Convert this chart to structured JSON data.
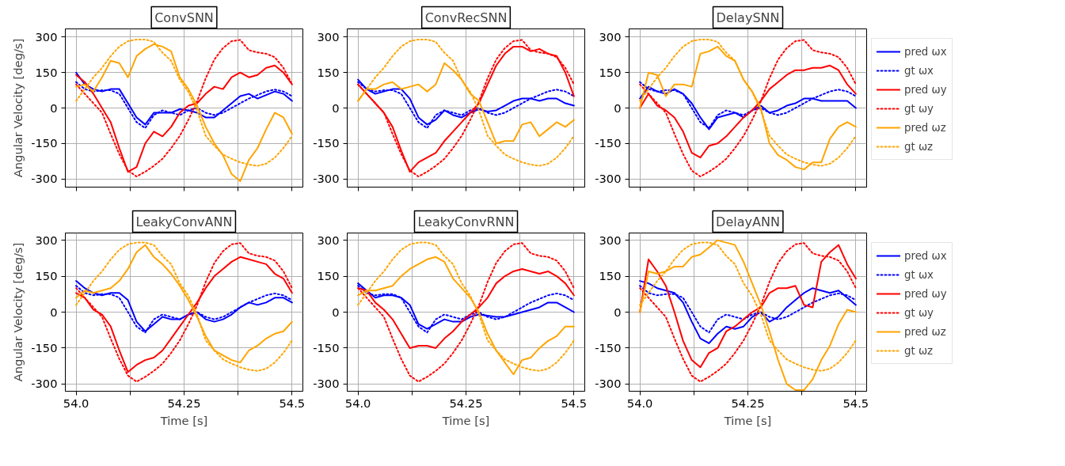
{
  "chart_data": [
    {
      "type": "line",
      "title": "ConvSNN",
      "ylabel": "Angular Velocity [deg/s]",
      "tick_labels": "y",
      "grid": true,
      "x": [
        54.0,
        54.02,
        54.04,
        54.06,
        54.08,
        54.1,
        54.12,
        54.14,
        54.16,
        54.18,
        54.2,
        54.22,
        54.24,
        54.26,
        54.28,
        54.3,
        54.32,
        54.34,
        54.36,
        54.38,
        54.4,
        54.42,
        54.44,
        54.46,
        54.48,
        54.5
      ],
      "xlim": [
        53.975,
        54.525
      ],
      "xticks": [
        {
          "value": 54.0,
          "label": null
        },
        {
          "value": 54.125,
          "label": null
        },
        {
          "value": 54.25,
          "label": null
        },
        {
          "value": 54.375,
          "label": null
        },
        {
          "value": 54.5,
          "label": null
        }
      ],
      "ylim": [
        -335,
        335
      ],
      "yticks": [
        -300,
        -150,
        0,
        150,
        300
      ],
      "series": [
        {
          "color": "#0000ff",
          "line_style": "solid",
          "values": [
            150,
            100,
            80,
            70,
            80,
            80,
            20,
            -40,
            -70,
            -20,
            -20,
            -20,
            -5,
            -10,
            -20,
            -40,
            -40,
            -10,
            20,
            50,
            60,
            40,
            55,
            70,
            60,
            30
          ]
        },
        {
          "color": "#0000ff",
          "line_style": "dotted",
          "values": [
            110,
            80,
            70,
            75,
            75,
            60,
            0,
            -60,
            -85,
            -30,
            -10,
            -20,
            -30,
            -10,
            0,
            -20,
            -30,
            -20,
            0,
            20,
            40,
            55,
            70,
            78,
            70,
            50
          ]
        },
        {
          "color": "#ff0000",
          "line_style": "solid",
          "values": [
            140,
            110,
            60,
            0,
            -60,
            -170,
            -270,
            -250,
            -150,
            -100,
            -120,
            -80,
            -20,
            10,
            20,
            60,
            90,
            80,
            130,
            150,
            130,
            140,
            170,
            180,
            150,
            100
          ]
        },
        {
          "color": "#ff0000",
          "line_style": "dotted",
          "values": [
            100,
            60,
            20,
            -20,
            -110,
            -195,
            -265,
            -290,
            -270,
            -245,
            -215,
            -170,
            -118,
            -50,
            28,
            126,
            205,
            254,
            283,
            288,
            245,
            235,
            230,
            215,
            170,
            100
          ]
        },
        {
          "color": "#ffa500",
          "line_style": "solid",
          "values": [
            90,
            100,
            70,
            130,
            200,
            190,
            130,
            220,
            250,
            270,
            260,
            240,
            130,
            80,
            10,
            -80,
            -150,
            -200,
            -280,
            -310,
            -220,
            -170,
            -90,
            -20,
            -40,
            -110
          ]
        },
        {
          "color": "#ffa500",
          "line_style": "dotted",
          "values": [
            30,
            80,
            130,
            170,
            220,
            260,
            283,
            290,
            290,
            280,
            234,
            200,
            120,
            68,
            -10,
            -118,
            -160,
            -197,
            -215,
            -230,
            -240,
            -245,
            -236,
            -210,
            -170,
            -118
          ]
        }
      ]
    },
    {
      "type": "line",
      "title": "ConvRecSNN",
      "tick_labels": "y",
      "grid": true,
      "x": [
        54.0,
        54.02,
        54.04,
        54.06,
        54.08,
        54.1,
        54.12,
        54.14,
        54.16,
        54.18,
        54.2,
        54.22,
        54.24,
        54.26,
        54.28,
        54.3,
        54.32,
        54.34,
        54.36,
        54.38,
        54.4,
        54.42,
        54.44,
        54.46,
        54.48,
        54.5
      ],
      "xlim": [
        53.975,
        54.525
      ],
      "xticks": [
        {
          "value": 54.0,
          "label": null
        },
        {
          "value": 54.125,
          "label": null
        },
        {
          "value": 54.25,
          "label": null
        },
        {
          "value": 54.375,
          "label": null
        },
        {
          "value": 54.5,
          "label": null
        }
      ],
      "ylim": [
        -335,
        335
      ],
      "yticks": [
        -300,
        -150,
        0,
        150,
        300
      ],
      "series": [
        {
          "color": "#0000ff",
          "line_style": "solid",
          "values": [
            120,
            80,
            60,
            70,
            80,
            80,
            40,
            -40,
            -70,
            -50,
            -10,
            -30,
            -40,
            -20,
            -5,
            -15,
            -10,
            10,
            30,
            40,
            40,
            30,
            40,
            40,
            20,
            10
          ]
        },
        {
          "color": "#0000ff",
          "line_style": "dotted",
          "values": [
            110,
            80,
            70,
            75,
            75,
            60,
            0,
            -60,
            -85,
            -30,
            -10,
            -20,
            -30,
            -10,
            0,
            -20,
            -30,
            -20,
            0,
            20,
            40,
            55,
            70,
            78,
            70,
            50
          ]
        },
        {
          "color": "#ff0000",
          "line_style": "solid",
          "values": [
            100,
            60,
            20,
            -20,
            -80,
            -180,
            -270,
            -230,
            -210,
            -190,
            -140,
            -100,
            -60,
            -20,
            20,
            100,
            180,
            230,
            260,
            260,
            240,
            250,
            230,
            220,
            150,
            50
          ]
        },
        {
          "color": "#ff0000",
          "line_style": "dotted",
          "values": [
            100,
            60,
            20,
            -20,
            -110,
            -195,
            -265,
            -290,
            -270,
            -245,
            -215,
            -170,
            -118,
            -50,
            28,
            126,
            205,
            254,
            283,
            288,
            245,
            235,
            230,
            215,
            170,
            100
          ]
        },
        {
          "color": "#ffa500",
          "line_style": "solid",
          "values": [
            30,
            80,
            80,
            100,
            110,
            80,
            90,
            100,
            70,
            100,
            190,
            160,
            120,
            60,
            30,
            -60,
            -150,
            -140,
            -140,
            -70,
            -60,
            -120,
            -90,
            -60,
            -80,
            -50
          ]
        },
        {
          "color": "#ffa500",
          "line_style": "dotted",
          "values": [
            30,
            80,
            130,
            170,
            220,
            260,
            283,
            290,
            290,
            280,
            234,
            200,
            120,
            68,
            -10,
            -118,
            -160,
            -197,
            -215,
            -230,
            -240,
            -245,
            -236,
            -210,
            -170,
            -118
          ]
        }
      ]
    },
    {
      "type": "line",
      "title": "DelaySNN",
      "tick_labels": "y",
      "grid": true,
      "legend": "right",
      "x": [
        54.0,
        54.02,
        54.04,
        54.06,
        54.08,
        54.1,
        54.12,
        54.14,
        54.16,
        54.18,
        54.2,
        54.22,
        54.24,
        54.26,
        54.28,
        54.3,
        54.32,
        54.34,
        54.36,
        54.38,
        54.4,
        54.42,
        54.44,
        54.46,
        54.48,
        54.5
      ],
      "xlim": [
        53.975,
        54.525
      ],
      "xticks": [
        {
          "value": 54.0,
          "label": null
        },
        {
          "value": 54.125,
          "label": null
        },
        {
          "value": 54.25,
          "label": null
        },
        {
          "value": 54.375,
          "label": null
        },
        {
          "value": 54.5,
          "label": null
        }
      ],
      "ylim": [
        -335,
        335
      ],
      "yticks": [
        -300,
        -150,
        0,
        150,
        300
      ],
      "series": [
        {
          "name": "pred ωx",
          "color": "#0000ff",
          "line_style": "solid",
          "values": [
            40,
            90,
            70,
            60,
            80,
            60,
            20,
            -40,
            -90,
            -40,
            -30,
            -20,
            -40,
            -10,
            10,
            -20,
            -10,
            10,
            20,
            40,
            40,
            30,
            30,
            30,
            30,
            0
          ]
        },
        {
          "name": "gt ωx",
          "color": "#0000ff",
          "line_style": "dotted",
          "values": [
            110,
            80,
            70,
            75,
            75,
            60,
            0,
            -60,
            -85,
            -30,
            -10,
            -20,
            -30,
            -10,
            0,
            -20,
            -30,
            -20,
            0,
            20,
            40,
            55,
            70,
            78,
            70,
            50
          ]
        },
        {
          "name": "pred ωy",
          "color": "#ff0000",
          "line_style": "solid",
          "values": [
            0,
            60,
            10,
            -10,
            -40,
            -100,
            -190,
            -210,
            -160,
            -150,
            -120,
            -80,
            -40,
            -10,
            30,
            80,
            110,
            140,
            160,
            160,
            170,
            170,
            180,
            160,
            100,
            60
          ]
        },
        {
          "name": "gt ωy",
          "color": "#ff0000",
          "line_style": "dotted",
          "values": [
            100,
            60,
            20,
            -20,
            -110,
            -195,
            -265,
            -290,
            -270,
            -245,
            -215,
            -170,
            -118,
            -50,
            28,
            126,
            205,
            254,
            283,
            288,
            245,
            235,
            230,
            215,
            170,
            100
          ]
        },
        {
          "name": "pred ωz",
          "color": "#ffa500",
          "line_style": "solid",
          "values": [
            0,
            150,
            140,
            50,
            100,
            100,
            90,
            230,
            240,
            260,
            220,
            200,
            120,
            70,
            0,
            -150,
            -200,
            -220,
            -250,
            -260,
            -230,
            -230,
            -130,
            -80,
            -60,
            -80
          ]
        },
        {
          "name": "gt ωz",
          "color": "#ffa500",
          "line_style": "dotted",
          "values": [
            30,
            80,
            130,
            170,
            220,
            260,
            283,
            290,
            290,
            280,
            234,
            200,
            120,
            68,
            -10,
            -118,
            -160,
            -197,
            -215,
            -230,
            -240,
            -245,
            -236,
            -210,
            -170,
            -118
          ]
        }
      ]
    },
    {
      "type": "line",
      "title": "LeakyConvANN",
      "ylabel": "Angular Velocity [deg/s]",
      "xlabel": "Time [s]",
      "grid": true,
      "x": [
        54.0,
        54.02,
        54.04,
        54.06,
        54.08,
        54.1,
        54.12,
        54.14,
        54.16,
        54.18,
        54.2,
        54.22,
        54.24,
        54.26,
        54.28,
        54.3,
        54.32,
        54.34,
        54.36,
        54.38,
        54.4,
        54.42,
        54.44,
        54.46,
        54.48,
        54.5
      ],
      "xlim": [
        53.975,
        54.525
      ],
      "xticks": [
        {
          "value": 54.0,
          "label": "54.0"
        },
        {
          "value": 54.125,
          "label": null
        },
        {
          "value": 54.25,
          "label": "54.25"
        },
        {
          "value": 54.375,
          "label": null
        },
        {
          "value": 54.5,
          "label": "54.5"
        }
      ],
      "ylim": [
        -330,
        330
      ],
      "yticks": [
        -300,
        -150,
        0,
        150,
        300
      ],
      "series": [
        {
          "color": "#0000ff",
          "line_style": "solid",
          "values": [
            130,
            100,
            80,
            70,
            80,
            80,
            50,
            -40,
            -80,
            -50,
            -20,
            -30,
            -30,
            -10,
            0,
            -30,
            -40,
            -30,
            -10,
            20,
            40,
            30,
            40,
            60,
            60,
            40
          ]
        },
        {
          "color": "#0000ff",
          "line_style": "dotted",
          "values": [
            110,
            80,
            70,
            75,
            75,
            60,
            0,
            -60,
            -85,
            -30,
            -10,
            -20,
            -30,
            -10,
            0,
            -20,
            -30,
            -20,
            0,
            20,
            40,
            55,
            70,
            78,
            70,
            50
          ]
        },
        {
          "color": "#ff0000",
          "line_style": "solid",
          "values": [
            80,
            60,
            10,
            -10,
            -60,
            -160,
            -250,
            -220,
            -200,
            -190,
            -160,
            -110,
            -60,
            -10,
            40,
            100,
            150,
            180,
            210,
            230,
            220,
            210,
            200,
            160,
            140,
            80
          ]
        },
        {
          "color": "#ff0000",
          "line_style": "dotted",
          "values": [
            100,
            60,
            20,
            -20,
            -110,
            -195,
            -265,
            -290,
            -270,
            -245,
            -215,
            -170,
            -118,
            -50,
            28,
            126,
            205,
            254,
            283,
            288,
            245,
            235,
            230,
            215,
            170,
            100
          ]
        },
        {
          "color": "#ffa500",
          "line_style": "solid",
          "values": [
            60,
            90,
            80,
            90,
            100,
            130,
            180,
            250,
            280,
            230,
            200,
            160,
            110,
            50,
            -20,
            -100,
            -160,
            -180,
            -200,
            -210,
            -160,
            -140,
            -110,
            -90,
            -80,
            -40
          ]
        },
        {
          "color": "#ffa500",
          "line_style": "dotted",
          "values": [
            30,
            80,
            130,
            170,
            220,
            260,
            283,
            290,
            290,
            280,
            234,
            200,
            120,
            68,
            -10,
            -118,
            -160,
            -197,
            -215,
            -230,
            -240,
            -245,
            -236,
            -210,
            -170,
            -118
          ]
        }
      ]
    },
    {
      "type": "line",
      "title": "LeakyConvRNN",
      "xlabel": "Time [s]",
      "grid": true,
      "x": [
        54.0,
        54.02,
        54.04,
        54.06,
        54.08,
        54.1,
        54.12,
        54.14,
        54.16,
        54.18,
        54.2,
        54.22,
        54.24,
        54.26,
        54.28,
        54.3,
        54.32,
        54.34,
        54.36,
        54.38,
        54.4,
        54.42,
        54.44,
        54.46,
        54.48,
        54.5
      ],
      "xlim": [
        53.975,
        54.525
      ],
      "xticks": [
        {
          "value": 54.0,
          "label": "54.0"
        },
        {
          "value": 54.125,
          "label": null
        },
        {
          "value": 54.25,
          "label": "54.25"
        },
        {
          "value": 54.375,
          "label": null
        },
        {
          "value": 54.5,
          "label": "54.5"
        }
      ],
      "ylim": [
        -330,
        330
      ],
      "yticks": [
        -300,
        -150,
        0,
        150,
        300
      ],
      "series": [
        {
          "color": "#0000ff",
          "line_style": "solid",
          "values": [
            120,
            90,
            60,
            70,
            70,
            60,
            30,
            -50,
            -70,
            -50,
            -30,
            -40,
            -40,
            -20,
            -10,
            -15,
            -20,
            -20,
            -10,
            0,
            10,
            20,
            40,
            40,
            20,
            0
          ]
        },
        {
          "color": "#0000ff",
          "line_style": "dotted",
          "values": [
            110,
            80,
            70,
            75,
            75,
            60,
            0,
            -60,
            -85,
            -30,
            -10,
            -20,
            -30,
            -10,
            0,
            -20,
            -30,
            -20,
            0,
            20,
            40,
            55,
            70,
            78,
            70,
            50
          ]
        },
        {
          "color": "#ff0000",
          "line_style": "solid",
          "values": [
            100,
            90,
            40,
            10,
            -30,
            -90,
            -150,
            -140,
            -140,
            -150,
            -110,
            -80,
            -40,
            -10,
            20,
            60,
            120,
            150,
            170,
            180,
            170,
            160,
            170,
            150,
            120,
            70
          ]
        },
        {
          "color": "#ff0000",
          "line_style": "dotted",
          "values": [
            100,
            60,
            20,
            -20,
            -110,
            -195,
            -265,
            -290,
            -270,
            -245,
            -215,
            -170,
            -118,
            -50,
            28,
            126,
            205,
            254,
            283,
            288,
            245,
            235,
            230,
            215,
            170,
            100
          ]
        },
        {
          "color": "#ffa500",
          "line_style": "solid",
          "values": [
            70,
            90,
            90,
            100,
            110,
            150,
            180,
            200,
            220,
            230,
            210,
            140,
            100,
            60,
            0,
            -90,
            -160,
            -210,
            -260,
            -200,
            -190,
            -150,
            -120,
            -100,
            -60,
            -60
          ]
        },
        {
          "color": "#ffa500",
          "line_style": "dotted",
          "values": [
            30,
            80,
            130,
            170,
            220,
            260,
            283,
            290,
            290,
            280,
            234,
            200,
            120,
            68,
            -10,
            -118,
            -160,
            -197,
            -215,
            -230,
            -240,
            -245,
            -236,
            -210,
            -170,
            -118
          ]
        }
      ]
    },
    {
      "type": "line",
      "title": "DelayANN",
      "xlabel": "Time [s]",
      "grid": true,
      "legend": "right",
      "x": [
        54.0,
        54.02,
        54.04,
        54.06,
        54.08,
        54.1,
        54.12,
        54.14,
        54.16,
        54.18,
        54.2,
        54.22,
        54.24,
        54.26,
        54.28,
        54.3,
        54.32,
        54.34,
        54.36,
        54.38,
        54.4,
        54.42,
        54.44,
        54.46,
        54.48,
        54.5
      ],
      "xlim": [
        53.975,
        54.525
      ],
      "xticks": [
        {
          "value": 54.0,
          "label": "54.0"
        },
        {
          "value": 54.125,
          "label": null
        },
        {
          "value": 54.25,
          "label": "54.25"
        },
        {
          "value": 54.375,
          "label": null
        },
        {
          "value": 54.5,
          "label": "54.5"
        }
      ],
      "ylim": [
        -330,
        330
      ],
      "yticks": [
        -300,
        -150,
        0,
        150,
        300
      ],
      "series": [
        {
          "name": "pred ωx",
          "color": "#0000ff",
          "line_style": "solid",
          "values": [
            130,
            120,
            100,
            90,
            80,
            40,
            -40,
            -110,
            -130,
            -90,
            -60,
            -70,
            -60,
            -20,
            0,
            -40,
            -20,
            20,
            50,
            80,
            100,
            90,
            80,
            90,
            60,
            30
          ]
        },
        {
          "name": "gt ωx",
          "color": "#0000ff",
          "line_style": "dotted",
          "values": [
            110,
            80,
            70,
            75,
            75,
            60,
            0,
            -60,
            -85,
            -30,
            -10,
            -20,
            -30,
            -10,
            0,
            -20,
            -30,
            -20,
            0,
            20,
            40,
            55,
            70,
            78,
            70,
            50
          ]
        },
        {
          "name": "pred ωy",
          "color": "#ff0000",
          "line_style": "solid",
          "values": [
            0,
            220,
            170,
            110,
            0,
            -120,
            -200,
            -230,
            -170,
            -150,
            -80,
            -60,
            -30,
            0,
            20,
            80,
            100,
            100,
            110,
            30,
            20,
            210,
            250,
            280,
            200,
            140
          ]
        },
        {
          "name": "gt ωy",
          "color": "#ff0000",
          "line_style": "dotted",
          "values": [
            100,
            60,
            20,
            -20,
            -110,
            -195,
            -265,
            -290,
            -270,
            -245,
            -215,
            -170,
            -118,
            -50,
            28,
            126,
            205,
            254,
            283,
            288,
            245,
            235,
            230,
            215,
            170,
            100
          ]
        },
        {
          "name": "pred ωz",
          "color": "#ffa500",
          "line_style": "solid",
          "values": [
            0,
            170,
            160,
            170,
            190,
            190,
            230,
            240,
            270,
            300,
            290,
            280,
            210,
            120,
            30,
            -80,
            -200,
            -300,
            -325,
            -325,
            -280,
            -200,
            -140,
            -50,
            10,
            0
          ]
        },
        {
          "name": "gt ωz",
          "color": "#ffa500",
          "line_style": "dotted",
          "values": [
            30,
            80,
            130,
            170,
            220,
            260,
            283,
            290,
            290,
            280,
            234,
            200,
            120,
            68,
            -10,
            -118,
            -160,
            -197,
            -215,
            -230,
            -240,
            -245,
            -236,
            -210,
            -170,
            -118
          ]
        }
      ]
    }
  ]
}
